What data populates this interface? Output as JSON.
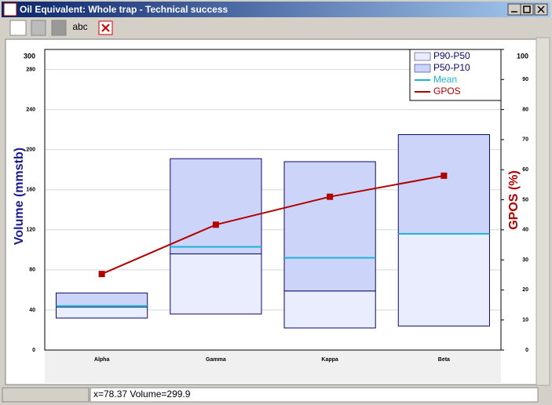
{
  "window": {
    "title": "Oil Equivalent: Whole trap - Technical success",
    "toolbar_text": "abc",
    "status": "x=78.37  Volume=299.9"
  },
  "chart_data": {
    "type": "floating-bar",
    "categories": [
      "Alpha",
      "Gamma",
      "Kappa",
      "Beta"
    ],
    "y_label": "Volume (mmstb)",
    "y2_label": "GPOS (%)",
    "ylim": [
      0,
      300
    ],
    "yticks": [
      0,
      40,
      80,
      120,
      160,
      200,
      240,
      280,
      300
    ],
    "y2lim": [
      0,
      100
    ],
    "y2ticks": [
      0,
      10,
      20,
      30,
      40,
      50,
      60,
      70,
      80,
      90,
      100
    ],
    "grid": true,
    "legend": "top-right",
    "series": [
      {
        "name": "P90-P50",
        "color": "#eaedfd",
        "low": [
          32,
          36,
          22,
          24
        ],
        "high": [
          43,
          96,
          59,
          116
        ]
      },
      {
        "name": "P50-P10",
        "color": "#cdd4fa",
        "high": [
          57,
          191,
          188,
          215
        ]
      },
      {
        "name": "Mean",
        "color": "#1bb5d3",
        "values": [
          44,
          103,
          92,
          116
        ]
      },
      {
        "name": "GPOS",
        "color": "#b00000",
        "axis": "y2",
        "values": [
          25.3,
          41.7,
          51,
          58
        ]
      }
    ]
  }
}
